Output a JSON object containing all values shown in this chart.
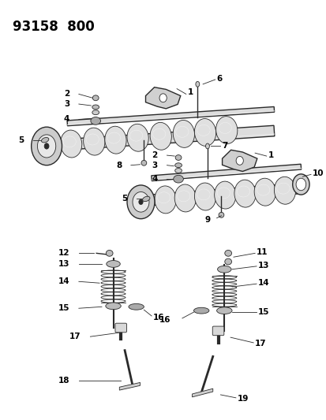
{
  "title": "93158  800",
  "bg_color": "#ffffff",
  "line_color": "#2a2a2a",
  "text_color": "#000000",
  "title_fontsize": 12,
  "label_fontsize": 7.5,
  "fig_width": 4.14,
  "fig_height": 5.33,
  "dpi": 100
}
